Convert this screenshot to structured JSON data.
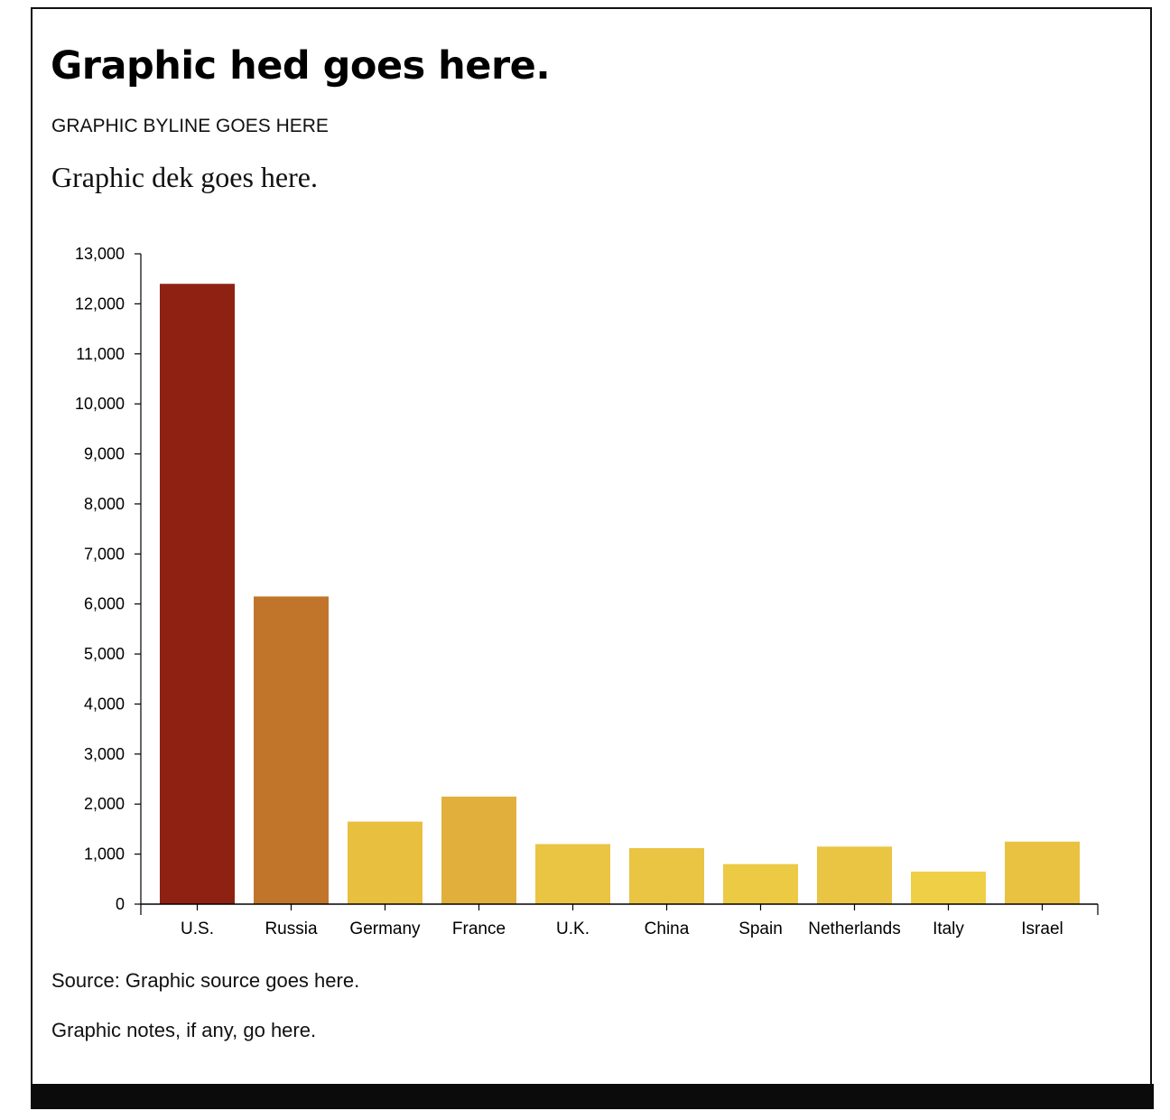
{
  "header": {
    "hed": "Graphic hed goes here.",
    "byline": "GRAPHIC BYLINE GOES HERE",
    "dek": "Graphic dek goes here."
  },
  "footer": {
    "source": "Source: Graphic source goes here.",
    "notes": "Graphic notes, if any, go here."
  },
  "chart_data": {
    "type": "bar",
    "categories": [
      "U.S.",
      "Russia",
      "Germany",
      "France",
      "U.K.",
      "China",
      "Spain",
      "Netherlands",
      "Italy",
      "Israel"
    ],
    "values": [
      12400,
      6150,
      1650,
      2150,
      1200,
      1120,
      800,
      1150,
      650,
      1250
    ],
    "colors": [
      "#8f2113",
      "#c0752b",
      "#e9bf40",
      "#e1b03c",
      "#eac443",
      "#eac443",
      "#ecca44",
      "#eac443",
      "#efcf45",
      "#e9c242"
    ],
    "ylim": [
      0,
      13000
    ],
    "yticks": [
      0,
      1000,
      2000,
      3000,
      4000,
      5000,
      6000,
      7000,
      8000,
      9000,
      10000,
      11000,
      12000,
      13000
    ],
    "ytick_labels": [
      "0",
      "1,000",
      "2,000",
      "3,000",
      "4,000",
      "5,000",
      "6,000",
      "7,000",
      "8,000",
      "9,000",
      "10,000",
      "11,000",
      "12,000",
      "13,000"
    ],
    "title": "",
    "xlabel": "",
    "ylabel": "",
    "grid": false
  }
}
